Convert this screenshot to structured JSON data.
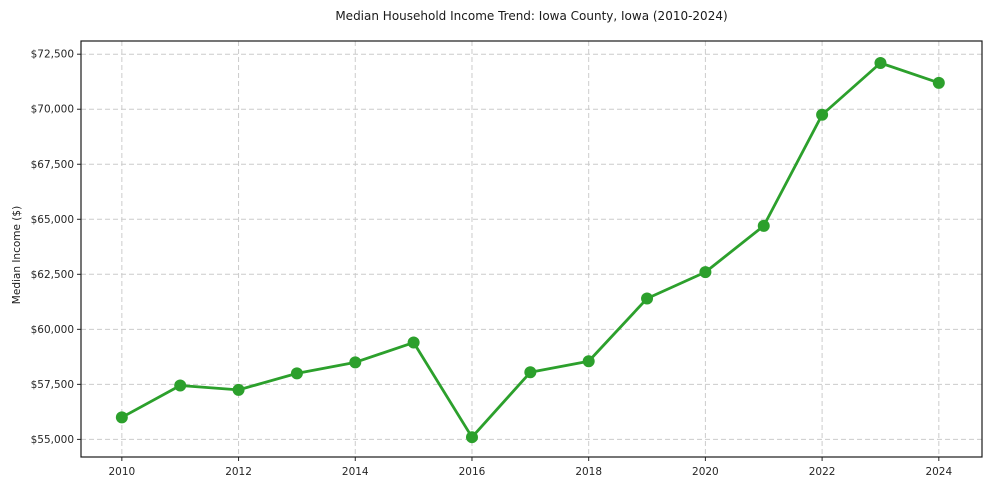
{
  "chart_data": {
    "type": "line",
    "title": "Median Household Income Trend: Iowa County, Iowa (2010-2024)",
    "xlabel": "",
    "ylabel": "Median Income ($)",
    "x": [
      2010,
      2011,
      2012,
      2013,
      2014,
      2015,
      2016,
      2017,
      2018,
      2019,
      2020,
      2021,
      2022,
      2023,
      2024
    ],
    "values": [
      56000,
      57450,
      57250,
      58000,
      58500,
      59400,
      55100,
      58050,
      58550,
      61400,
      62600,
      64700,
      69750,
      72100,
      71200
    ],
    "series_name": "Median Household Income",
    "xticks": [
      {
        "value": 2010,
        "label": "2010"
      },
      {
        "value": 2012,
        "label": "2012"
      },
      {
        "value": 2014,
        "label": "2014"
      },
      {
        "value": 2016,
        "label": "2016"
      },
      {
        "value": 2018,
        "label": "2018"
      },
      {
        "value": 2020,
        "label": "2020"
      },
      {
        "value": 2022,
        "label": "2022"
      },
      {
        "value": 2024,
        "label": "2024"
      }
    ],
    "yticks": [
      {
        "value": 55000,
        "label": "$55,000"
      },
      {
        "value": 57500,
        "label": "$57,500"
      },
      {
        "value": 60000,
        "label": "$60,000"
      },
      {
        "value": 62500,
        "label": "$62,500"
      },
      {
        "value": 65000,
        "label": "$65,000"
      },
      {
        "value": 67500,
        "label": "$67,500"
      },
      {
        "value": 70000,
        "label": "$70,000"
      },
      {
        "value": 72500,
        "label": "$72,500"
      }
    ],
    "xlim": [
      2009.3,
      2024.74
    ],
    "ylim": [
      54200,
      73100
    ],
    "grid": "dashed",
    "legend": "none",
    "colors": {
      "line": "#2ca02c",
      "marker": "#2ca02c",
      "grid": "#cccccc",
      "spine": "#1a1a1a",
      "tick": "#262626",
      "background": "#ffffff"
    }
  }
}
